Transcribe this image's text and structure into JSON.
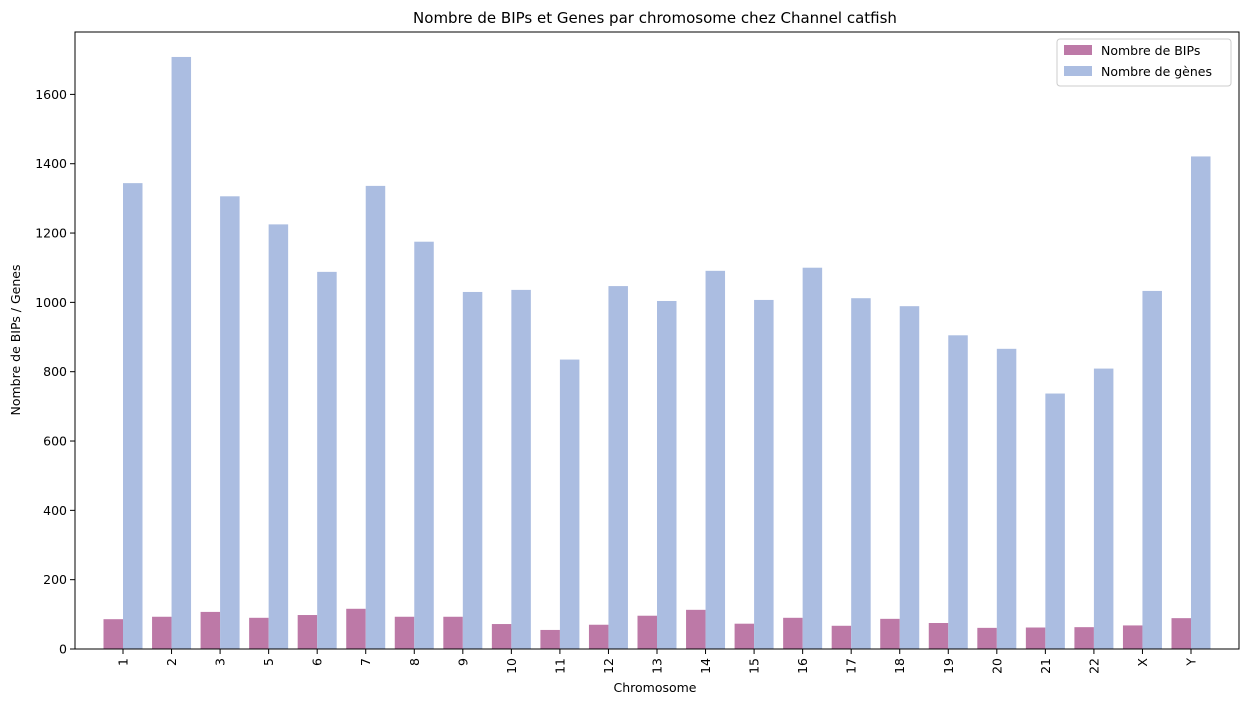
{
  "chart_data": {
    "type": "bar",
    "title": "Nombre de BIPs et Genes par chromosome chez Channel catfish",
    "xlabel": "Chromosome",
    "ylabel": "Nombre de BIPs / Genes",
    "ylim": [
      0,
      1780
    ],
    "yticks": [
      0,
      200,
      400,
      600,
      800,
      1000,
      1200,
      1400,
      1600
    ],
    "grid": false,
    "legend_position": "top-right",
    "categories": [
      "1",
      "2",
      "3",
      "5",
      "6",
      "7",
      "8",
      "9",
      "10",
      "11",
      "12",
      "13",
      "14",
      "15",
      "16",
      "17",
      "18",
      "19",
      "20",
      "21",
      "22",
      "X",
      "Y"
    ],
    "series": [
      {
        "name": "Nombre de BIPs",
        "color": "#bd79a7",
        "values": [
          86,
          93,
          107,
          90,
          98,
          116,
          93,
          93,
          72,
          55,
          70,
          96,
          113,
          73,
          90,
          67,
          87,
          75,
          61,
          62,
          63,
          68,
          89
        ]
      },
      {
        "name": "Nombre de gènes",
        "color": "#abbde1",
        "values": [
          1344,
          1708,
          1306,
          1225,
          1088,
          1336,
          1175,
          1030,
          1036,
          835,
          1047,
          1004,
          1091,
          1007,
          1100,
          1012,
          989,
          905,
          866,
          737,
          809,
          1033,
          1421
        ]
      }
    ]
  }
}
